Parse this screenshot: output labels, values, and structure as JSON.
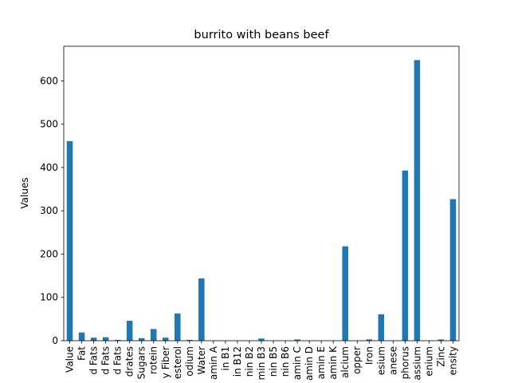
{
  "chart_data": {
    "type": "bar",
    "title": "burrito with beans beef",
    "xlabel": "",
    "ylabel": "Values",
    "ylim": [
      0,
      680
    ],
    "yticks": [
      0,
      100,
      200,
      300,
      400,
      500,
      600
    ],
    "bar_color": "#1f77b4",
    "categories": [
      "Value",
      "Fat",
      "d Fats",
      "d Fats",
      "d Fats",
      "drates",
      "Sugars",
      "rotein",
      "y Fiber",
      "esterol",
      "odium",
      "Water",
      "amin A",
      "in B1",
      "in B12",
      "nin B2",
      "min B3",
      "nin B5",
      "nin B6",
      "amin C",
      "amin D",
      "amin E",
      "amin K",
      "alcium",
      "opper",
      "Iron",
      "esium",
      "anese",
      "phorus",
      "assium",
      "enium",
      "Zinc",
      "ensity"
    ],
    "values": [
      461,
      19,
      7,
      8,
      2,
      46,
      6,
      27,
      7,
      63,
      2,
      144,
      0,
      0,
      0,
      0,
      5,
      0,
      0,
      3,
      0,
      0,
      0,
      218,
      0,
      3,
      61,
      0,
      393,
      648,
      0,
      3,
      327
    ]
  }
}
